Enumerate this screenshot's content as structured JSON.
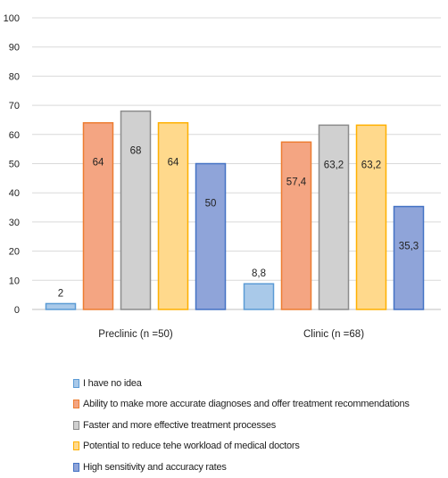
{
  "chart_data": {
    "type": "bar",
    "categories": [
      "Preclinic (n =50)",
      "Clinic (n =68)"
    ],
    "series": [
      {
        "name": "I have no idea",
        "values": [
          2,
          8.8
        ],
        "labels": [
          "2",
          "8,8"
        ],
        "fill": "#a9c9e9",
        "stroke": "#5b9bd5"
      },
      {
        "name": "Ability to make more accurate diagnoses and offer treatment recommendations",
        "values": [
          64,
          57.4
        ],
        "labels": [
          "64",
          "57,4"
        ],
        "fill": "#f4a582",
        "stroke": "#ed7d31"
      },
      {
        "name": "Faster and more effective treatment processes",
        "values": [
          68,
          63.2
        ],
        "labels": [
          "68",
          "63,2"
        ],
        "fill": "#d0d0d0",
        "stroke": "#8c8c8c"
      },
      {
        "name": "Potential to reduce tehe workload of medical doctors",
        "values": [
          64,
          63.2
        ],
        "labels": [
          "64",
          "63,2"
        ],
        "fill": "#ffd98c",
        "stroke": "#ffb000"
      },
      {
        "name": "High sensitivity and accuracy rates",
        "values": [
          50,
          35.3
        ],
        "labels": [
          "50",
          "35,3"
        ],
        "fill": "#8fa4d9",
        "stroke": "#4472c4"
      }
    ],
    "yticks": [
      "0",
      "10",
      "20",
      "30",
      "40",
      "50",
      "60",
      "70",
      "80",
      "90",
      "100"
    ],
    "ylim": [
      0,
      100
    ],
    "grid": true,
    "legend_position": "bottom"
  }
}
